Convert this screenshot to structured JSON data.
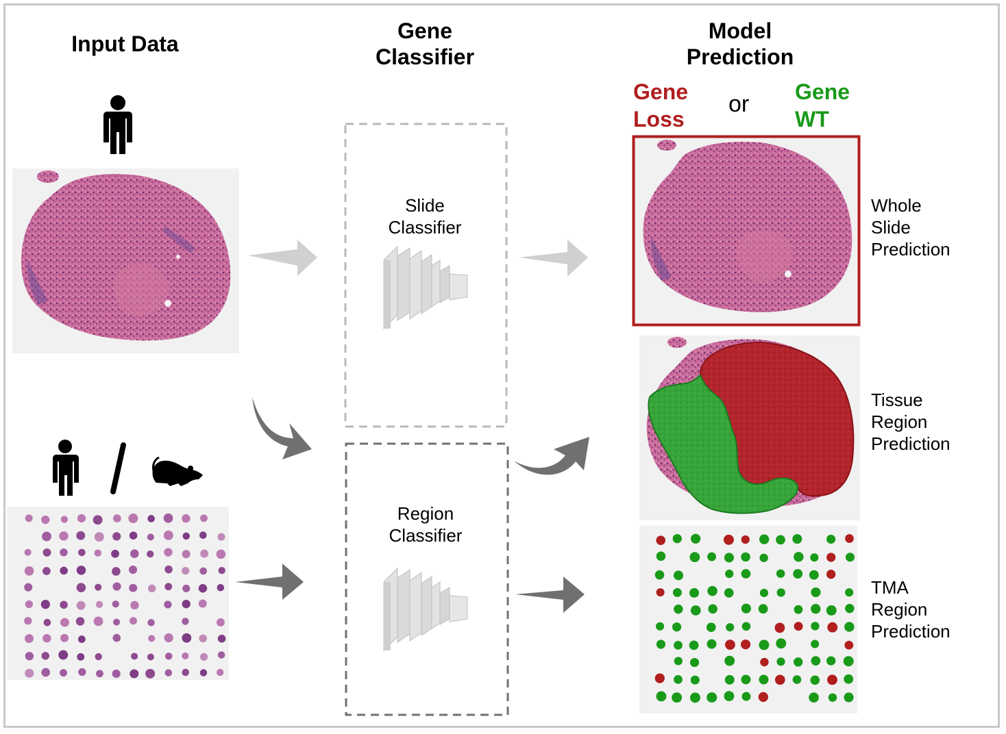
{
  "columns": {
    "input": {
      "title": "Input Data"
    },
    "classifier": {
      "title_line1": "Gene",
      "title_line2": "Classifier"
    },
    "prediction": {
      "title_line1": "Model",
      "title_line2": "Prediction"
    }
  },
  "classes": {
    "loss_line1": "Gene",
    "loss_line2": "Loss",
    "or": "or",
    "wt_line1": "Gene",
    "wt_line2": "WT",
    "loss_color": "#b01e1e",
    "wt_color": "#199a19"
  },
  "slide_classifier": {
    "line1": "Slide",
    "line2": "Classifier"
  },
  "region_classifier": {
    "line1": "Region",
    "line2": "Classifier"
  },
  "outputs": {
    "whole_slide": {
      "line1": "Whole",
      "line2": "Slide",
      "line3": "Prediction"
    },
    "tissue_region": {
      "line1": "Tissue",
      "line2": "Region",
      "line3": "Prediction"
    },
    "tma_region": {
      "line1": "TMA",
      "line2": "Region",
      "line3": "Prediction"
    }
  },
  "icons": {
    "human_top": "person-icon",
    "human_bottom": "person-icon",
    "mouse": "mouse-icon",
    "network": "neural-network-icon"
  }
}
